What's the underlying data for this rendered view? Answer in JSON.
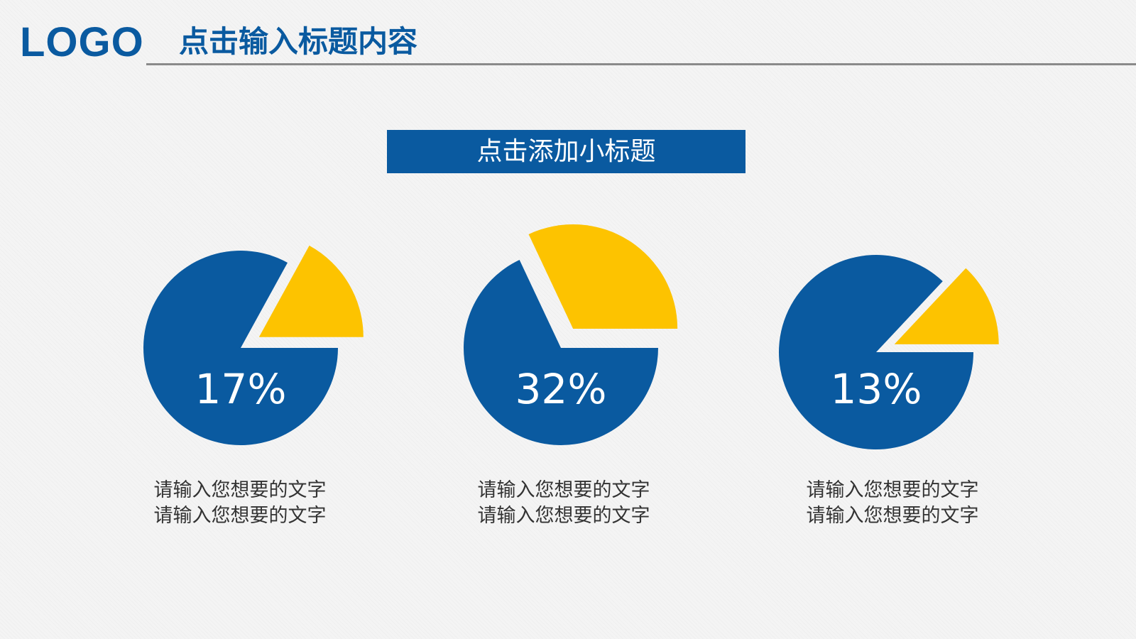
{
  "header": {
    "logo_text": "LOGO",
    "title": "点击输入标题内容"
  },
  "subtitle": "点击添加小标题",
  "colors": {
    "primary": "#0a5aa0",
    "accent": "#fdc300",
    "rule": "#8a8a8a"
  },
  "chart_data": [
    {
      "type": "pie",
      "exploded": true,
      "slices": [
        {
          "value": 17,
          "color": "#fdc300",
          "exploded": true
        },
        {
          "value": 83,
          "color": "#0a5aa0"
        }
      ],
      "label": "17%",
      "caption": [
        "请输入您想要的文字",
        "请输入您想要的文字"
      ]
    },
    {
      "type": "pie",
      "exploded": true,
      "slices": [
        {
          "value": 32,
          "color": "#fdc300",
          "exploded": true
        },
        {
          "value": 68,
          "color": "#0a5aa0"
        }
      ],
      "label": "32%",
      "caption": [
        "请输入您想要的文字",
        "请输入您想要的文字"
      ]
    },
    {
      "type": "pie",
      "exploded": true,
      "slices": [
        {
          "value": 13,
          "color": "#fdc300",
          "exploded": true
        },
        {
          "value": 87,
          "color": "#0a5aa0"
        }
      ],
      "label": "13%",
      "caption": [
        "请输入您想要的文字",
        "请输入您想要的文字"
      ]
    }
  ]
}
